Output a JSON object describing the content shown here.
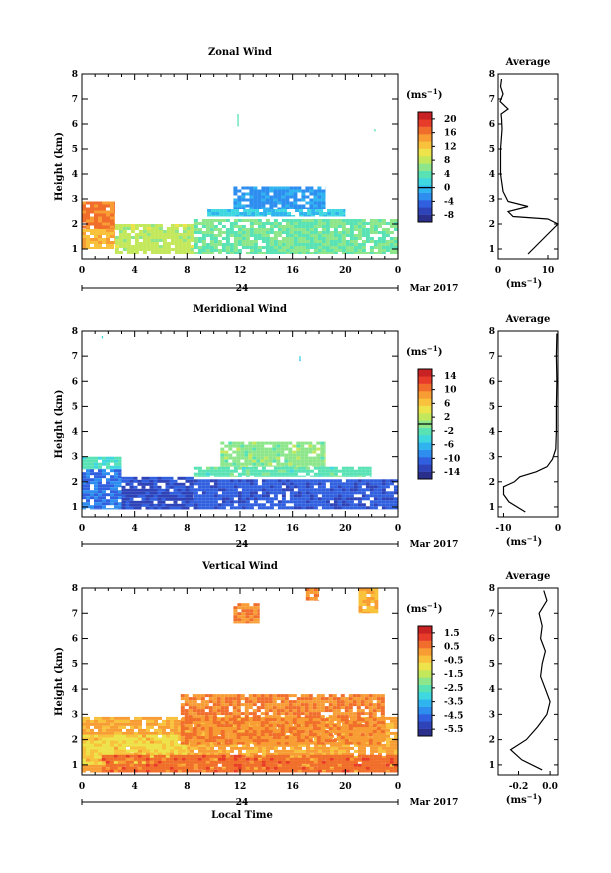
{
  "x_axis_label": "Local Time",
  "panels": [
    {
      "title": "Zonal Wind",
      "ylabel": "Height (km)",
      "day_label": "24",
      "month_label": "Mar 2017",
      "cbar_unit": "(ms",
      "cbar_ticks": [
        "20",
        "16",
        "12",
        "8",
        "4",
        "0",
        "-4",
        "-8"
      ],
      "avg_title": "Average",
      "avg_xlabel": "(ms",
      "avg_xticks": [
        "0",
        "10"
      ]
    },
    {
      "title": "Meridional Wind",
      "ylabel": "Height (km)",
      "day_label": "24",
      "month_label": "Mar 2017",
      "cbar_unit": "(ms",
      "cbar_ticks": [
        "14",
        "10",
        "6",
        "2",
        "-2",
        "-6",
        "-10",
        "-14"
      ],
      "avg_title": "Average",
      "avg_xlabel": "(ms",
      "avg_xticks": [
        "-10",
        "0"
      ]
    },
    {
      "title": "Vertical Wind",
      "ylabel": "Height (km)",
      "day_label": "24",
      "month_label": "Mar 2017",
      "cbar_unit": "(ms",
      "cbar_ticks": [
        "1.5",
        "0.5",
        "-0.5",
        "-1.5",
        "-2.5",
        "-3.5",
        "-4.5",
        "-5.5"
      ],
      "avg_title": "Average",
      "avg_xlabel": "(ms",
      "avg_xticks": [
        "-0.2",
        "0.0"
      ]
    }
  ],
  "chart_data": [
    {
      "type": "heatmap",
      "title": "Zonal Wind",
      "xlabel": "",
      "ylabel": "Height (km)",
      "x_range_hours": [
        0,
        24
      ],
      "y_range_km": [
        0.6,
        8.0
      ],
      "x_ticks": [
        "0",
        "4",
        "8",
        "12",
        "16",
        "20",
        "0"
      ],
      "y_ticks": [
        "1",
        "2",
        "3",
        "4",
        "5",
        "6",
        "7",
        "8"
      ],
      "colorbar": {
        "unit": "ms^-1",
        "range": [
          -10,
          22
        ],
        "ticks": [
          20,
          16,
          12,
          8,
          4,
          0,
          -4,
          -8
        ],
        "contour": 0
      },
      "regions": [
        {
          "hours": [
            0,
            2.5
          ],
          "heights_km": [
            1.8,
            2.9
          ],
          "value": 16
        },
        {
          "hours": [
            0,
            2.5
          ],
          "heights_km": [
            1.0,
            1.8
          ],
          "value": 13
        },
        {
          "hours": [
            2.5,
            8.5
          ],
          "heights_km": [
            0.8,
            2.0
          ],
          "value": 8
        },
        {
          "hours": [
            8.5,
            24
          ],
          "heights_km": [
            0.8,
            2.2
          ],
          "value": 5
        },
        {
          "hours": [
            9.5,
            20
          ],
          "heights_km": [
            2.3,
            2.6
          ],
          "value": 1
        },
        {
          "hours": [
            11.5,
            18.5
          ],
          "heights_km": [
            2.6,
            3.5
          ],
          "value": -2
        },
        {
          "hours": [
            11.8,
            11.9
          ],
          "heights_km": [
            5.9,
            6.4
          ],
          "value": 4
        },
        {
          "hours": [
            22.2,
            22.3
          ],
          "heights_km": [
            5.7,
            5.8
          ],
          "value": 4
        }
      ],
      "average_profile": {
        "xlabel": "ms^-1",
        "xlim": [
          0,
          12
        ],
        "x": [
          6,
          8,
          10,
          12,
          10,
          3,
          2,
          6,
          2,
          1,
          0.5,
          0.5,
          0.8,
          0.7,
          0.6,
          2.0,
          0.4,
          1.0,
          0.5,
          0.7
        ],
        "y_km": [
          0.8,
          1.2,
          1.6,
          2.0,
          2.2,
          2.3,
          2.5,
          2.7,
          2.9,
          3.3,
          4.0,
          5.0,
          5.8,
          6.2,
          6.4,
          6.6,
          6.9,
          7.2,
          7.5,
          7.8
        ]
      }
    },
    {
      "type": "heatmap",
      "title": "Meridional Wind",
      "xlabel": "",
      "ylabel": "Height (km)",
      "x_range_hours": [
        0,
        24
      ],
      "y_range_km": [
        0.6,
        8.0
      ],
      "x_ticks": [
        "0",
        "4",
        "8",
        "12",
        "16",
        "20",
        "0"
      ],
      "y_ticks": [
        "1",
        "2",
        "3",
        "4",
        "5",
        "6",
        "7",
        "8"
      ],
      "colorbar": {
        "unit": "ms^-1",
        "range": [
          -16,
          16
        ],
        "ticks": [
          14,
          10,
          6,
          2,
          -2,
          -6,
          -10,
          -14
        ],
        "contour": 0
      },
      "regions": [
        {
          "hours": [
            0,
            3.0
          ],
          "heights_km": [
            2.5,
            3.0
          ],
          "value": -3
        },
        {
          "hours": [
            0,
            3.0
          ],
          "heights_km": [
            0.9,
            2.5
          ],
          "value": -10
        },
        {
          "hours": [
            3.0,
            8.5
          ],
          "heights_km": [
            0.9,
            2.2
          ],
          "value": -12
        },
        {
          "hours": [
            8.5,
            24
          ],
          "heights_km": [
            0.9,
            2.1
          ],
          "value": -11
        },
        {
          "hours": [
            8.5,
            22
          ],
          "heights_km": [
            2.2,
            2.6
          ],
          "value": -2
        },
        {
          "hours": [
            10.5,
            18.5
          ],
          "heights_km": [
            2.6,
            3.6
          ],
          "value": 0
        },
        {
          "hours": [
            1.5,
            1.6
          ],
          "heights_km": [
            7.7,
            7.8
          ],
          "value": -4
        },
        {
          "hours": [
            16.5,
            16.6
          ],
          "heights_km": [
            6.8,
            7.0
          ],
          "value": -6
        }
      ],
      "average_profile": {
        "xlabel": "ms^-1",
        "xlim": [
          -11,
          0
        ],
        "x": [
          -6,
          -9,
          -10,
          -10,
          -8,
          -7,
          -4,
          -2,
          -1,
          -0.4,
          -0.3,
          -0.3,
          -0.2,
          -0.3,
          -0.2
        ],
        "y_km": [
          0.8,
          1.2,
          1.5,
          1.8,
          2.0,
          2.2,
          2.4,
          2.6,
          2.9,
          3.3,
          4.0,
          5.0,
          6.0,
          7.0,
          7.9
        ]
      }
    },
    {
      "type": "heatmap",
      "title": "Vertical Wind",
      "xlabel": "Local Time",
      "ylabel": "Height (km)",
      "x_range_hours": [
        0,
        24
      ],
      "y_range_km": [
        0.6,
        8.0
      ],
      "x_ticks": [
        "0",
        "4",
        "8",
        "12",
        "16",
        "20",
        "0"
      ],
      "y_ticks": [
        "1",
        "2",
        "3",
        "4",
        "5",
        "6",
        "7",
        "8"
      ],
      "colorbar": {
        "unit": "ms^-1",
        "range": [
          -6,
          2
        ],
        "ticks": [
          1.5,
          0.5,
          -0.5,
          -1.5,
          -2.5,
          -3.5,
          -4.5,
          -5.5
        ]
      },
      "regions": [
        {
          "hours": [
            0,
            24
          ],
          "heights_km": [
            0.7,
            2.9
          ],
          "value": 0.0
        },
        {
          "hours": [
            0,
            8
          ],
          "heights_km": [
            1.0,
            2.2
          ],
          "value": -0.7
        },
        {
          "hours": [
            7.5,
            23
          ],
          "heights_km": [
            1.8,
            3.8
          ],
          "value": 0.4
        },
        {
          "hours": [
            1.5,
            24
          ],
          "heights_km": [
            0.7,
            1.4
          ],
          "value": 0.7
        },
        {
          "hours": [
            11.5,
            13.5
          ],
          "heights_km": [
            6.6,
            7.4
          ],
          "value": 0.4
        },
        {
          "hours": [
            17,
            18
          ],
          "heights_km": [
            7.5,
            8.0
          ],
          "value": 0.4
        },
        {
          "hours": [
            21,
            22.5
          ],
          "heights_km": [
            7.0,
            8.0
          ],
          "value": -0.2
        }
      ],
      "average_profile": {
        "xlabel": "ms^-1",
        "xlim": [
          -0.33,
          0.05
        ],
        "x": [
          -0.05,
          -0.18,
          -0.25,
          -0.15,
          -0.08,
          -0.02,
          0.0,
          -0.03,
          -0.06,
          -0.05,
          -0.03,
          -0.06,
          -0.05,
          -0.07,
          -0.02,
          -0.04
        ],
        "y_km": [
          0.8,
          1.2,
          1.6,
          2.0,
          2.5,
          3.0,
          3.5,
          4.0,
          4.5,
          5.0,
          5.5,
          6.0,
          6.5,
          7.0,
          7.5,
          7.9
        ]
      }
    }
  ]
}
